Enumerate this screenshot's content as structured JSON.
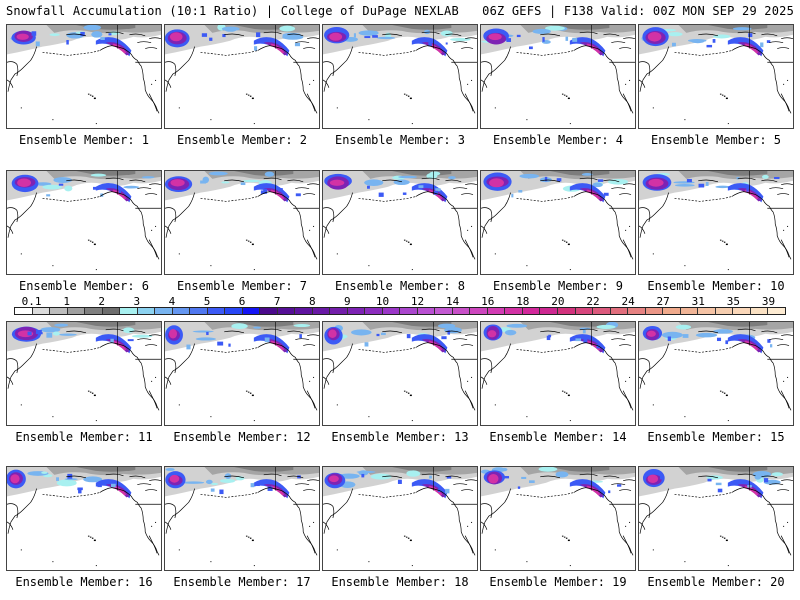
{
  "header": {
    "left_title": "Snowfall Accumulation (10:1 Ratio) | College of DuPage NEXLAB",
    "right_title": "06Z GEFS | F138 Valid: 00Z MON SEP 29 2025"
  },
  "panels": [
    {
      "label": "Ensemble Member: 1",
      "member": 1
    },
    {
      "label": "Ensemble Member: 2",
      "member": 2
    },
    {
      "label": "Ensemble Member: 3",
      "member": 3
    },
    {
      "label": "Ensemble Member: 4",
      "member": 4
    },
    {
      "label": "Ensemble Member: 5",
      "member": 5
    },
    {
      "label": "Ensemble Member: 6",
      "member": 6
    },
    {
      "label": "Ensemble Member: 7",
      "member": 7
    },
    {
      "label": "Ensemble Member: 8",
      "member": 8
    },
    {
      "label": "Ensemble Member: 9",
      "member": 9
    },
    {
      "label": "Ensemble Member: 10",
      "member": 10
    },
    {
      "label": "Ensemble Member: 11",
      "member": 11
    },
    {
      "label": "Ensemble Member: 12",
      "member": 12
    },
    {
      "label": "Ensemble Member: 13",
      "member": 13
    },
    {
      "label": "Ensemble Member: 14",
      "member": 14
    },
    {
      "label": "Ensemble Member: 15",
      "member": 15
    },
    {
      "label": "Ensemble Member: 16",
      "member": 16
    },
    {
      "label": "Ensemble Member: 17",
      "member": 17
    },
    {
      "label": "Ensemble Member: 18",
      "member": 18
    },
    {
      "label": "Ensemble Member: 19",
      "member": 19
    },
    {
      "label": "Ensemble Member: 20",
      "member": 20
    }
  ],
  "colorbar": {
    "tick_labels": [
      "0.1",
      "1",
      "2",
      "3",
      "4",
      "5",
      "6",
      "7",
      "8",
      "9",
      "10",
      "12",
      "14",
      "16",
      "18",
      "20",
      "22",
      "24",
      "27",
      "31",
      "35",
      "39"
    ],
    "colors": [
      "#ffffff",
      "#dcdcdc",
      "#bdbdbd",
      "#a0a0a0",
      "#808080",
      "#6e6e6e",
      "#a8f0f0",
      "#8cd2f0",
      "#78b4f0",
      "#6496f0",
      "#5078f0",
      "#3c5af5",
      "#2846f5",
      "#1414f5",
      "#4b0a8c",
      "#550f96",
      "#5f14a0",
      "#6919a5",
      "#731eaa",
      "#7d23b4",
      "#8c2dbe",
      "#9b37c8",
      "#aa46cd",
      "#b950d2",
      "#c35ad2",
      "#c850c8",
      "#cd46be",
      "#d23cb4",
      "#d232a5",
      "#d2289b",
      "#cd2891",
      "#d2327d",
      "#d7467d",
      "#dc5a7d",
      "#e16e7d",
      "#e68282",
      "#eb9687",
      "#f0aa8c",
      "#f0b496",
      "#f5c3a5",
      "#f5cdaf",
      "#fad7b9",
      "#fae1c3",
      "#fdebd2"
    ]
  },
  "map_palette": {
    "ocean": "#ffffff",
    "coast": "#000000",
    "snow_gray_light": "#d2d2d2",
    "snow_gray_mid": "#a5a5a5",
    "snow_gray_dark": "#7d7d7d",
    "snow_cyan": "#a8f0f0",
    "snow_blue_light": "#78b4f0",
    "snow_blue": "#3c5af5",
    "snow_purple": "#7d23b4",
    "snow_magenta": "#d232a5"
  }
}
